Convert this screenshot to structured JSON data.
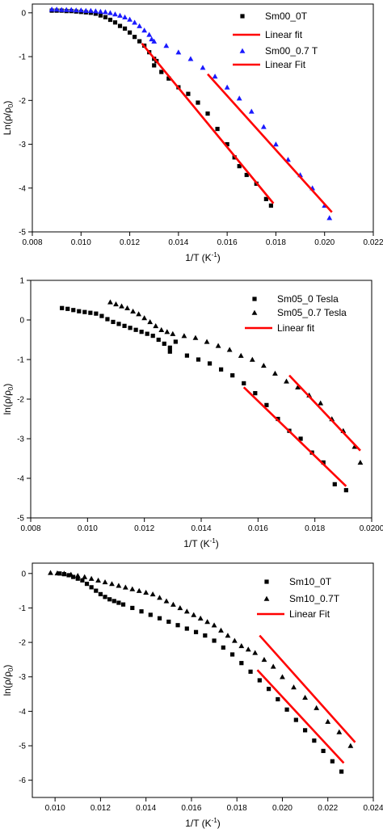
{
  "chart_data": [
    {
      "type": "scatter",
      "xlabel_main": "1/T (K",
      "xlabel_sup": "-1",
      "xlabel_end": ")",
      "ylabel_main": "Ln(ρ/ρ",
      "ylabel_sub": "0",
      "ylabel_end": ")",
      "xlim": [
        0.008,
        0.022
      ],
      "ylim": [
        -5,
        0.2
      ],
      "xticks": [
        0.008,
        0.01,
        0.012,
        0.014,
        0.016,
        0.018,
        0.02,
        0.022
      ],
      "xtick_labels": [
        "0.008",
        "0.010",
        "0.012",
        "0.014",
        "0.016",
        "0.018",
        "0.020",
        "0.022"
      ],
      "yticks": [
        0,
        -1,
        -2,
        -3,
        -4,
        -5
      ],
      "ytick_labels": [
        "0",
        "-1",
        "-2",
        "-3",
        "-4",
        "-5"
      ],
      "grid": false,
      "legend_position": "top-right",
      "series": [
        {
          "name": "Sm00_0T",
          "kind": "points",
          "marker": "square",
          "color": "#000000",
          "x": [
            0.0088,
            0.009,
            0.0092,
            0.0094,
            0.0096,
            0.0098,
            0.01,
            0.0102,
            0.0104,
            0.0106,
            0.0108,
            0.011,
            0.0112,
            0.0114,
            0.0116,
            0.0118,
            0.012,
            0.0122,
            0.0124,
            0.0126,
            0.0128,
            0.013,
            0.013,
            0.0131,
            0.0133,
            0.0136,
            0.014,
            0.0144,
            0.0148,
            0.0152,
            0.0156,
            0.016,
            0.0163,
            0.0165,
            0.0168,
            0.0172,
            0.0176,
            0.0178
          ],
          "y": [
            0.05,
            0.05,
            0.05,
            0.04,
            0.04,
            0.03,
            0.02,
            0.01,
            0.0,
            -0.02,
            -0.06,
            -0.1,
            -0.16,
            -0.22,
            -0.3,
            -0.36,
            -0.45,
            -0.55,
            -0.65,
            -0.75,
            -0.9,
            -1.05,
            -1.2,
            -1.1,
            -1.35,
            -1.5,
            -1.7,
            -1.85,
            -2.05,
            -2.3,
            -2.65,
            -3.0,
            -3.3,
            -3.5,
            -3.7,
            -3.9,
            -4.25,
            -4.4
          ]
        },
        {
          "name": "Sm00_0.7 T",
          "kind": "points",
          "marker": "triangle",
          "color": "#1a1aff",
          "x": [
            0.0088,
            0.009,
            0.0092,
            0.0094,
            0.0096,
            0.0098,
            0.01,
            0.0102,
            0.0104,
            0.0106,
            0.0108,
            0.011,
            0.0112,
            0.0114,
            0.0116,
            0.0118,
            0.012,
            0.0122,
            0.0124,
            0.0126,
            0.0128,
            0.0129,
            0.013,
            0.0135,
            0.014,
            0.0145,
            0.015,
            0.0155,
            0.016,
            0.0165,
            0.017,
            0.0175,
            0.018,
            0.0185,
            0.019,
            0.0195,
            0.02,
            0.0202
          ],
          "y": [
            0.08,
            0.08,
            0.07,
            0.07,
            0.07,
            0.06,
            0.06,
            0.05,
            0.05,
            0.04,
            0.03,
            0.02,
            0.0,
            -0.03,
            -0.06,
            -0.1,
            -0.15,
            -0.22,
            -0.3,
            -0.4,
            -0.5,
            -0.6,
            -0.65,
            -0.75,
            -0.9,
            -1.05,
            -1.25,
            -1.45,
            -1.7,
            -1.95,
            -2.25,
            -2.6,
            -3.0,
            -3.35,
            -3.7,
            -4.0,
            -4.4,
            -4.68
          ]
        },
        {
          "name": "Linear fit",
          "kind": "line",
          "color": "#ff0000",
          "x": [
            0.0125,
            0.0179
          ],
          "y": [
            -0.7,
            -4.35
          ]
        },
        {
          "name": "Linear Fit",
          "kind": "line",
          "color": "#ff0000",
          "x": [
            0.0152,
            0.0203
          ],
          "y": [
            -1.4,
            -4.55
          ]
        }
      ]
    },
    {
      "type": "scatter",
      "xlabel_main": "1/T (K",
      "xlabel_sup": "-1",
      "xlabel_end": ")",
      "ylabel_main": "ln(ρ/ρ",
      "ylabel_sub": "0",
      "ylabel_end": ")",
      "xlim": [
        0.008,
        0.02
      ],
      "ylim": [
        -5,
        1
      ],
      "xticks": [
        0.008,
        0.01,
        0.012,
        0.014,
        0.016,
        0.018,
        0.02
      ],
      "xtick_labels": [
        "0.008",
        "0.010",
        "0.012",
        "0.014",
        "0.016",
        "0.018",
        "0.0200"
      ],
      "yticks": [
        1,
        0,
        -1,
        -2,
        -3,
        -4,
        -5
      ],
      "ytick_labels": [
        "1",
        "0",
        "-1",
        "-2",
        "-3",
        "-4",
        "-5"
      ],
      "grid": false,
      "legend_position": "top-right",
      "series": [
        {
          "name": "Sm05_0 Tesla",
          "kind": "points",
          "marker": "square",
          "color": "#000000",
          "x": [
            0.0091,
            0.0093,
            0.0095,
            0.0097,
            0.0099,
            0.0101,
            0.0103,
            0.0105,
            0.0107,
            0.0109,
            0.0111,
            0.0113,
            0.0115,
            0.0117,
            0.0119,
            0.0121,
            0.0123,
            0.0125,
            0.0127,
            0.0129,
            0.0129,
            0.0131,
            0.0135,
            0.0139,
            0.0143,
            0.0147,
            0.0151,
            0.0155,
            0.0159,
            0.0163,
            0.0167,
            0.0171,
            0.0175,
            0.0179,
            0.0183,
            0.0187,
            0.0191
          ],
          "y": [
            0.3,
            0.28,
            0.25,
            0.22,
            0.2,
            0.18,
            0.16,
            0.1,
            0.02,
            -0.05,
            -0.1,
            -0.15,
            -0.2,
            -0.25,
            -0.3,
            -0.35,
            -0.4,
            -0.5,
            -0.6,
            -0.7,
            -0.8,
            -0.55,
            -0.9,
            -1.0,
            -1.1,
            -1.25,
            -1.4,
            -1.6,
            -1.85,
            -2.15,
            -2.5,
            -2.8,
            -3.0,
            -3.35,
            -3.6,
            -4.15,
            -4.3
          ]
        },
        {
          "name": "Sm05_0.7 Tesla",
          "kind": "points",
          "marker": "triangle",
          "color": "#000000",
          "x": [
            0.0108,
            0.011,
            0.0112,
            0.0114,
            0.0116,
            0.0118,
            0.012,
            0.0122,
            0.0124,
            0.0126,
            0.0128,
            0.013,
            0.0134,
            0.0138,
            0.0142,
            0.0146,
            0.015,
            0.0154,
            0.0158,
            0.0162,
            0.0166,
            0.017,
            0.0174,
            0.0178,
            0.0182,
            0.0186,
            0.019,
            0.0194,
            0.0196
          ],
          "y": [
            0.45,
            0.4,
            0.35,
            0.3,
            0.22,
            0.15,
            0.05,
            -0.05,
            -0.15,
            -0.25,
            -0.3,
            -0.35,
            -0.4,
            -0.45,
            -0.55,
            -0.65,
            -0.75,
            -0.9,
            -1.0,
            -1.15,
            -1.35,
            -1.55,
            -1.7,
            -1.9,
            -2.1,
            -2.5,
            -2.8,
            -3.2,
            -3.6
          ]
        },
        {
          "name": "Linear fit",
          "kind": "line",
          "color": "#ff0000",
          "x": [
            0.0155,
            0.0191
          ],
          "y": [
            -1.7,
            -4.2
          ]
        },
        {
          "name": "",
          "kind": "line",
          "color": "#ff0000",
          "x": [
            0.0171,
            0.0196
          ],
          "y": [
            -1.4,
            -3.3
          ]
        }
      ]
    },
    {
      "type": "scatter",
      "xlabel_main": "1/T (K",
      "xlabel_sup": "-1",
      "xlabel_end": ")",
      "ylabel_main": "ln(ρ/ρ",
      "ylabel_sub": "0",
      "ylabel_end": ")",
      "xlim": [
        0.009,
        0.024
      ],
      "ylim": [
        -6.5,
        0.3
      ],
      "xticks": [
        0.01,
        0.012,
        0.014,
        0.016,
        0.018,
        0.02,
        0.022,
        0.024
      ],
      "xtick_labels": [
        "0.010",
        "0.012",
        "0.014",
        "0.016",
        "0.018",
        "0.020",
        "0.022",
        "0.024"
      ],
      "yticks": [
        0,
        -1,
        -2,
        -3,
        -4,
        -5,
        -6
      ],
      "ytick_labels": [
        "0",
        "-1",
        "-2",
        "-3",
        "-4",
        "-5",
        "-6"
      ],
      "grid": false,
      "legend_position": "top-right",
      "series": [
        {
          "name": "Sm10_0T",
          "kind": "points",
          "marker": "square",
          "color": "#000000",
          "x": [
            0.0102,
            0.0104,
            0.0106,
            0.0108,
            0.011,
            0.0112,
            0.0114,
            0.0116,
            0.0118,
            0.012,
            0.0122,
            0.0124,
            0.0126,
            0.0128,
            0.013,
            0.0134,
            0.0138,
            0.0142,
            0.0146,
            0.015,
            0.0154,
            0.0158,
            0.0162,
            0.0166,
            0.017,
            0.0174,
            0.0178,
            0.0182,
            0.0186,
            0.019,
            0.0194,
            0.0198,
            0.0202,
            0.0206,
            0.021,
            0.0214,
            0.0218,
            0.0222,
            0.0226
          ],
          "y": [
            0.0,
            -0.02,
            -0.05,
            -0.1,
            -0.15,
            -0.2,
            -0.3,
            -0.4,
            -0.5,
            -0.6,
            -0.68,
            -0.75,
            -0.8,
            -0.85,
            -0.9,
            -1.0,
            -1.1,
            -1.2,
            -1.3,
            -1.4,
            -1.5,
            -1.6,
            -1.7,
            -1.8,
            -1.95,
            -2.15,
            -2.35,
            -2.6,
            -2.85,
            -3.1,
            -3.35,
            -3.65,
            -3.95,
            -4.25,
            -4.55,
            -4.85,
            -5.15,
            -5.45,
            -5.75
          ]
        },
        {
          "name": "Sm10_0.7T",
          "kind": "points",
          "marker": "triangle",
          "color": "#000000",
          "x": [
            0.0098,
            0.0101,
            0.0104,
            0.0107,
            0.011,
            0.0113,
            0.0116,
            0.0119,
            0.0122,
            0.0125,
            0.0128,
            0.0131,
            0.0134,
            0.0137,
            0.014,
            0.0143,
            0.0146,
            0.0149,
            0.0152,
            0.0155,
            0.0158,
            0.0161,
            0.0164,
            0.0167,
            0.017,
            0.0173,
            0.0176,
            0.0179,
            0.0182,
            0.0185,
            0.0188,
            0.0192,
            0.0196,
            0.02,
            0.0205,
            0.021,
            0.0215,
            0.022,
            0.0225,
            0.023
          ],
          "y": [
            0.02,
            0.01,
            0.0,
            -0.03,
            -0.06,
            -0.1,
            -0.15,
            -0.2,
            -0.25,
            -0.3,
            -0.35,
            -0.4,
            -0.45,
            -0.5,
            -0.55,
            -0.6,
            -0.7,
            -0.8,
            -0.9,
            -1.0,
            -1.1,
            -1.2,
            -1.3,
            -1.4,
            -1.5,
            -1.65,
            -1.8,
            -1.95,
            -2.1,
            -2.2,
            -2.3,
            -2.5,
            -2.7,
            -3.0,
            -3.3,
            -3.6,
            -3.9,
            -4.3,
            -4.6,
            -5.0
          ]
        },
        {
          "name": "Linear Fit",
          "kind": "line",
          "color": "#ff0000",
          "x": [
            0.0189,
            0.0227
          ],
          "y": [
            -2.8,
            -5.5
          ]
        },
        {
          "name": "",
          "kind": "line",
          "color": "#ff0000",
          "x": [
            0.019,
            0.0232
          ],
          "y": [
            -1.8,
            -4.9
          ]
        }
      ]
    }
  ]
}
